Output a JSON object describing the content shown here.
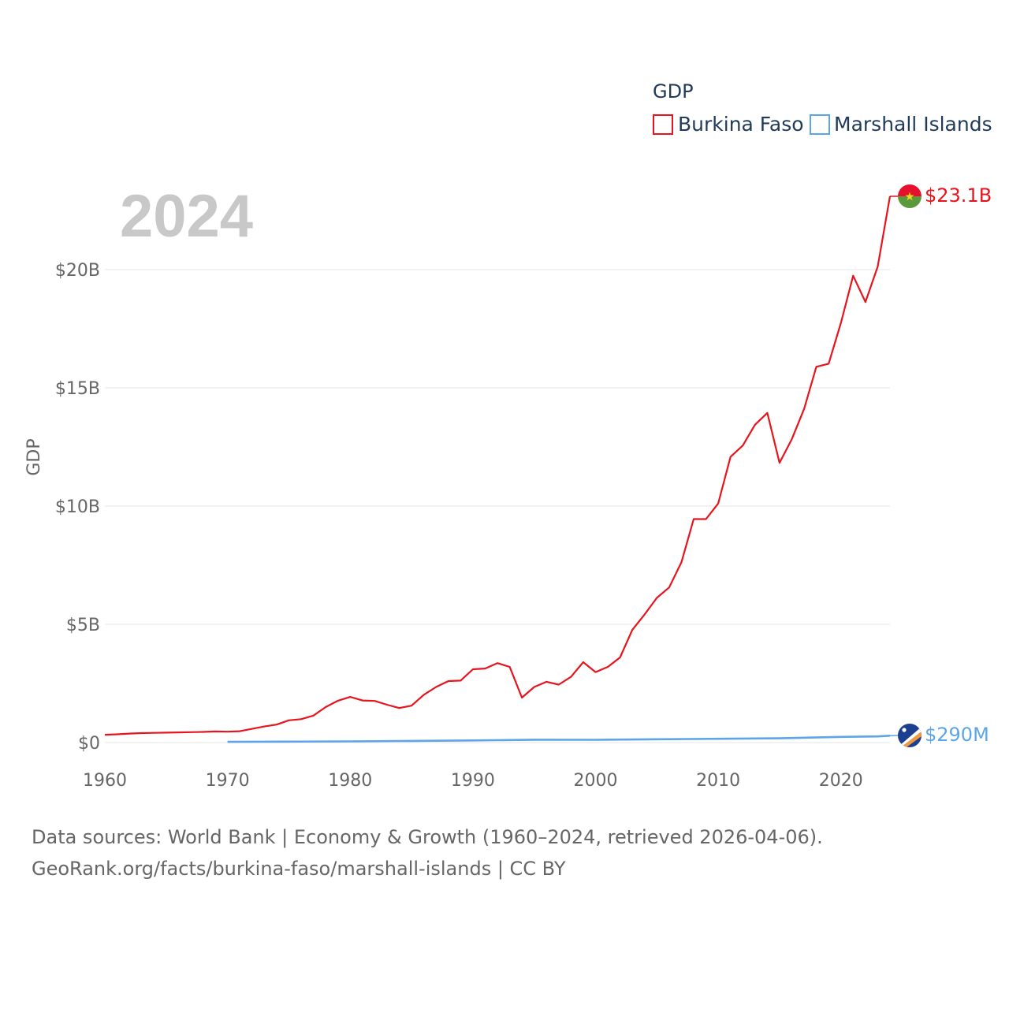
{
  "chart_data": {
    "type": "line",
    "title": "",
    "year_label": "2024",
    "xlabel": "",
    "ylabel": "GDP",
    "xlim": [
      1960,
      2024
    ],
    "ylim": [
      0,
      23100000000
    ],
    "x_ticks": [
      1960,
      1970,
      1980,
      1990,
      2000,
      2010,
      2020
    ],
    "y_ticks": [
      {
        "value": 0,
        "label": "$0"
      },
      {
        "value": 5000000000,
        "label": "$5B"
      },
      {
        "value": 10000000000,
        "label": "$10B"
      },
      {
        "value": 15000000000,
        "label": "$15B"
      },
      {
        "value": 20000000000,
        "label": "$20B"
      }
    ],
    "grid": true,
    "legend": {
      "title": "GDP",
      "position": "top-right",
      "entries": [
        "Burkina Faso",
        "Marshall Islands"
      ]
    },
    "series": [
      {
        "name": "Burkina Faso",
        "color": "#e8141d",
        "end_label": "$23.1B",
        "flag": "burkina-faso-flag",
        "x": [
          1960,
          1961,
          1962,
          1963,
          1964,
          1965,
          1966,
          1967,
          1968,
          1969,
          1970,
          1971,
          1972,
          1973,
          1974,
          1975,
          1976,
          1977,
          1978,
          1979,
          1980,
          1981,
          1982,
          1983,
          1984,
          1985,
          1986,
          1987,
          1988,
          1989,
          1990,
          1991,
          1992,
          1993,
          1994,
          1995,
          1996,
          1997,
          1998,
          1999,
          2000,
          2001,
          2002,
          2003,
          2004,
          2005,
          2006,
          2007,
          2008,
          2009,
          2010,
          2011,
          2012,
          2013,
          2014,
          2015,
          2016,
          2017,
          2018,
          2019,
          2020,
          2021,
          2022,
          2023,
          2024
        ],
        "values": [
          330000000,
          350000000,
          380000000,
          400000000,
          410000000,
          420000000,
          430000000,
          440000000,
          450000000,
          470000000,
          460000000,
          480000000,
          580000000,
          680000000,
          760000000,
          940000000,
          990000000,
          1140000000,
          1500000000,
          1770000000,
          1930000000,
          1780000000,
          1760000000,
          1600000000,
          1460000000,
          1560000000,
          2020000000,
          2350000000,
          2600000000,
          2620000000,
          3100000000,
          3130000000,
          3360000000,
          3200000000,
          1900000000,
          2350000000,
          2570000000,
          2450000000,
          2780000000,
          3400000000,
          2980000000,
          3200000000,
          3600000000,
          4770000000,
          5420000000,
          6120000000,
          6560000000,
          7620000000,
          9450000000,
          9450000000,
          10110000000,
          12080000000,
          12560000000,
          13440000000,
          13940000000,
          11830000000,
          12830000000,
          14110000000,
          15890000000,
          16020000000,
          17750000000,
          19740000000,
          18630000000,
          20120000000,
          23100000000
        ]
      },
      {
        "name": "Marshall Islands",
        "color": "#5ca5e8",
        "end_label": "$290M",
        "flag": "marshall-islands-flag",
        "x": [
          1970,
          1975,
          1980,
          1985,
          1990,
          1995,
          2000,
          2005,
          2010,
          2015,
          2020,
          2023,
          2024
        ],
        "values": [
          30000000,
          40000000,
          50000000,
          70000000,
          90000000,
          120000000,
          115000000,
          140000000,
          160000000,
          180000000,
          240000000,
          260000000,
          290000000
        ]
      }
    ]
  },
  "footer": {
    "line1": "Data sources: World Bank | Economy & Growth (1960–2024, retrieved 2026-04-06).",
    "line2": "GeoRank.org/facts/burkina-faso/marshall-islands | CC BY"
  }
}
